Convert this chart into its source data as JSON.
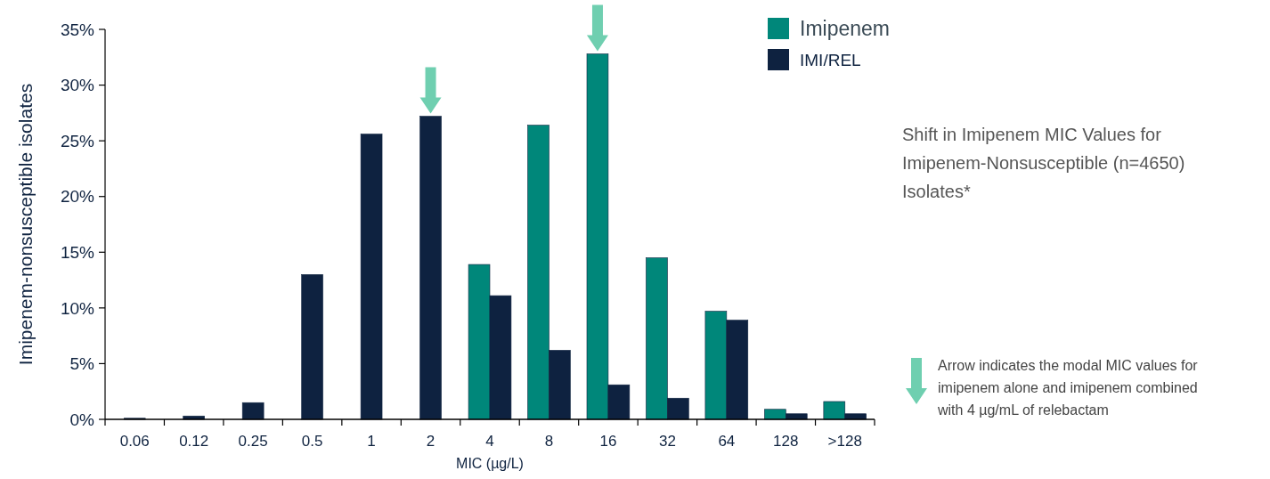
{
  "chart_data": {
    "type": "bar",
    "title": "Shift in Imipenem MIC Values for Imipenem-Nonsusceptible (n=4650) Isolates*",
    "xlabel": "MIC (µg/L)",
    "ylabel": "Imipenem-nonsusceptible isolates",
    "categories": [
      "0.06",
      "0.12",
      "0.25",
      "0.5",
      "1",
      "2",
      "4",
      "8",
      "16",
      "32",
      "64",
      "128",
      ">128"
    ],
    "series": [
      {
        "name": "Imipenem",
        "color": "#00877a",
        "values": [
          null,
          null,
          null,
          null,
          null,
          null,
          13.9,
          26.4,
          32.8,
          14.5,
          9.7,
          0.9,
          1.6
        ]
      },
      {
        "name": "IMI/REL",
        "color": "#0e2240",
        "values": [
          0.1,
          0.3,
          1.5,
          13.0,
          25.6,
          27.2,
          11.1,
          6.2,
          3.1,
          1.9,
          8.9,
          0.5,
          0.5
        ]
      }
    ],
    "ylim": [
      0,
      35
    ],
    "yticks": [
      {
        "value": 0,
        "label": "0%"
      },
      {
        "value": 5,
        "label": "5%"
      },
      {
        "value": 10,
        "label": "10%"
      },
      {
        "value": 15,
        "label": "15%"
      },
      {
        "value": 20,
        "label": "20%"
      },
      {
        "value": 25,
        "label": "25%"
      },
      {
        "value": 30,
        "label": "30%"
      },
      {
        "value": 35,
        "label": "35%"
      }
    ],
    "legend": "top right",
    "annotations": [
      "Arrow indicates the modal MIC values for imipenem alone and imipenem combined with 4 µg/mL of relebactam"
    ]
  }
}
